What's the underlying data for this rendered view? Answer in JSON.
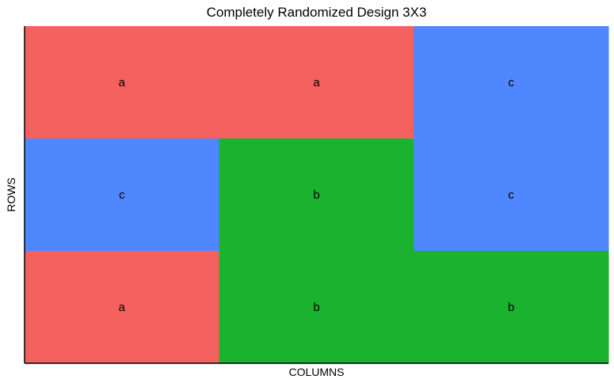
{
  "chart_data": {
    "type": "heatmap",
    "title": "Completely Randomized Design 3X3",
    "xlabel": "COLUMNS",
    "ylabel": "ROWS",
    "rows": 3,
    "cols": 3,
    "grid": false,
    "legend": "none",
    "cells": [
      [
        "a",
        "a",
        "c"
      ],
      [
        "c",
        "b",
        "c"
      ],
      [
        "a",
        "b",
        "b"
      ]
    ],
    "colors": {
      "a": "#F5615F",
      "b": "#1AB22F",
      "c": "#4F87FF"
    }
  }
}
